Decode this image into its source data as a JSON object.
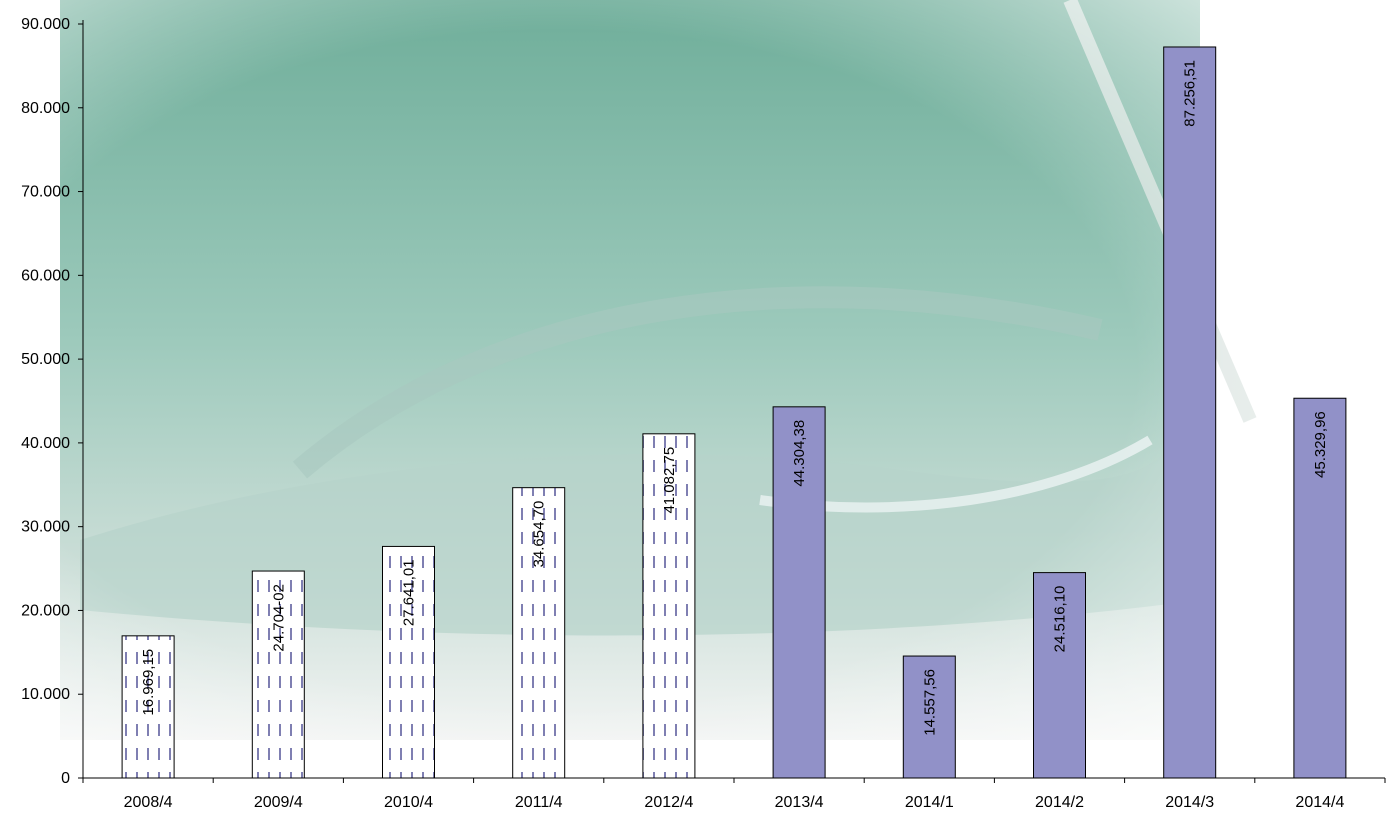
{
  "chart_data": {
    "type": "bar",
    "categories": [
      "2008/4",
      "2009/4",
      "2010/4",
      "2011/4",
      "2012/4",
      "2013/4",
      "2014/1",
      "2014/2",
      "2014/3",
      "2014/4"
    ],
    "values": [
      16969.15,
      24704.02,
      27641.01,
      34654.7,
      41082.75,
      44304.38,
      14557.56,
      24516.1,
      87256.51,
      45329.96
    ],
    "data_labels": [
      "16.969,15",
      "24.704-02",
      "27.641,01",
      "34.654,70",
      "41.082,75",
      "44.304,38",
      "14.557,56",
      "24.516,10",
      "87.256,51",
      "45.329,96"
    ],
    "bar_styles": [
      "dashed",
      "dashed",
      "dashed",
      "dashed",
      "dashed",
      "solid",
      "solid",
      "solid",
      "solid",
      "solid"
    ],
    "ylim": [
      0,
      90000
    ],
    "yticks": [
      0,
      10000,
      20000,
      30000,
      40000,
      50000,
      60000,
      70000,
      80000,
      90000
    ],
    "ytick_labels": [
      "0",
      "10.000",
      "20.000",
      "30.000",
      "40.000",
      "50.000",
      "60.000",
      "70.000",
      "80.000",
      "90.000"
    ],
    "title": "",
    "xlabel": "",
    "ylabel": "",
    "grid": false,
    "legend": "none",
    "colors": {
      "solid_bar": "#9191c8",
      "dashed_bar_fill": "#ffffff",
      "dashed_bar_dash": "#7f7fb2",
      "bar_outline": "#000000",
      "background_photo": "#8fbfae"
    }
  }
}
